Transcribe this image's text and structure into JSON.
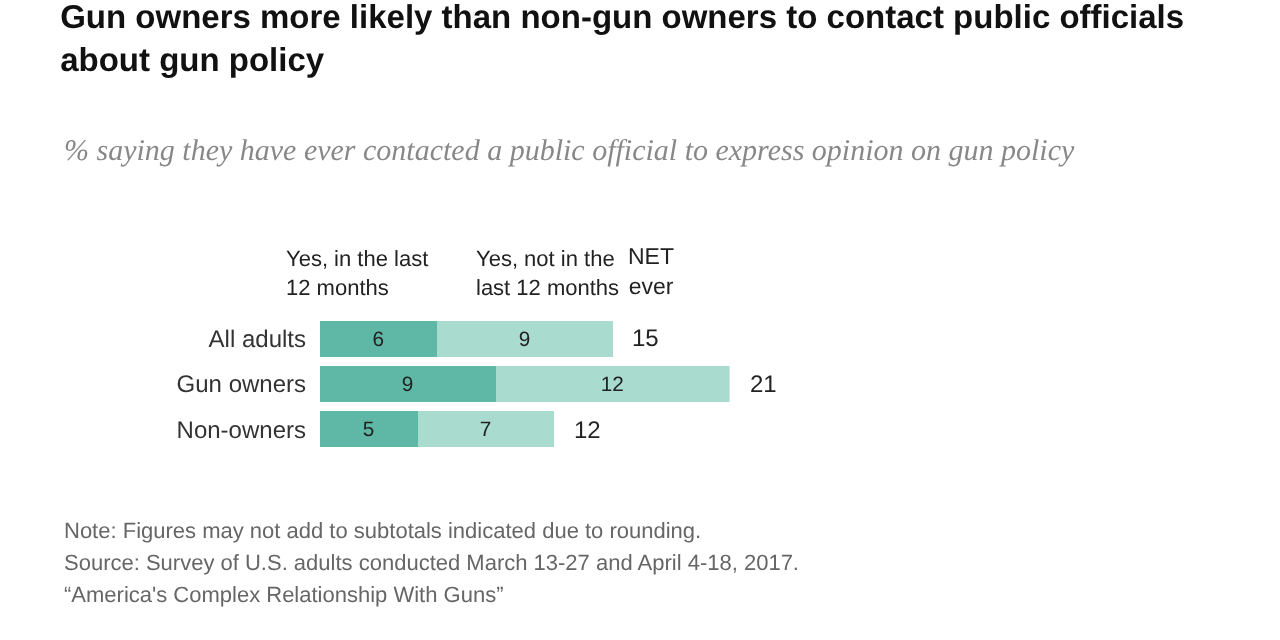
{
  "chart_data": {
    "type": "bar",
    "orientation": "horizontal",
    "stacked": true,
    "data_labels": true,
    "legend": false,
    "title": "Gun owners more likely than non-gun owners to contact public officials about gun policy",
    "subtitle": "% saying they have ever contacted a public official to express opinion on gun policy",
    "categories": [
      "All adults",
      "Gun owners",
      "Non-owners"
    ],
    "series": [
      {
        "name": "Yes, in the last 12 months",
        "color": "#5fb8a5",
        "values": [
          6,
          9,
          5
        ]
      },
      {
        "name": "Yes, not in the last 12 months",
        "color": "#a9dccf",
        "values": [
          9,
          12,
          7
        ]
      }
    ],
    "totals": [
      "15",
      "21",
      "12"
    ],
    "annotations": [
      "NET ever",
      "Note: Figures may not add to subtotals indicated due to rounding.",
      "Source: Survey of U.S. adults conducted March 13-27 and April 4-18, 2017.",
      "“America's Complex Relationship With Guns”"
    ]
  }
}
